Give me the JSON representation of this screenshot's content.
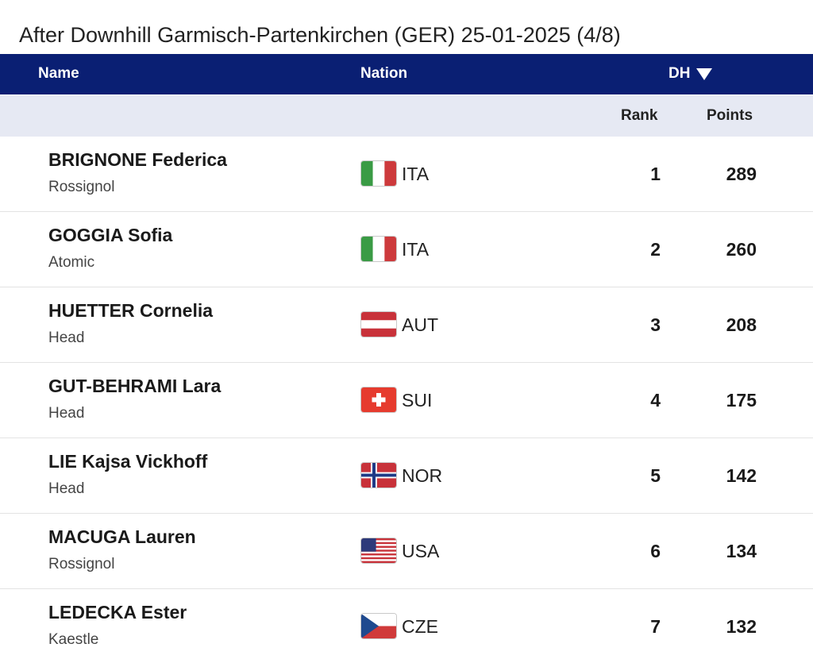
{
  "title": "After Downhill Garmisch-Partenkirchen (GER) 25-01-2025 (4/8)",
  "table": {
    "headers": {
      "name": "Name",
      "nation": "Nation",
      "discipline": "DH",
      "rank": "Rank",
      "points": "Points"
    },
    "sort_icon": "triangle-down-icon",
    "header_color": "#0a1f73",
    "subheader_color": "#e6e9f3",
    "rows": [
      {
        "name": "BRIGNONE Federica",
        "brand": "Rossignol",
        "nation": "ITA",
        "flag": "italy-flag-icon",
        "rank": "1",
        "points": "289"
      },
      {
        "name": "GOGGIA Sofia",
        "brand": "Atomic",
        "nation": "ITA",
        "flag": "italy-flag-icon",
        "rank": "2",
        "points": "260"
      },
      {
        "name": "HUETTER Cornelia",
        "brand": "Head",
        "nation": "AUT",
        "flag": "austria-flag-icon",
        "rank": "3",
        "points": "208"
      },
      {
        "name": "GUT-BEHRAMI Lara",
        "brand": "Head",
        "nation": "SUI",
        "flag": "switzerland-flag-icon",
        "rank": "4",
        "points": "175"
      },
      {
        "name": "LIE Kajsa Vickhoff",
        "brand": "Head",
        "nation": "NOR",
        "flag": "norway-flag-icon",
        "rank": "5",
        "points": "142"
      },
      {
        "name": "MACUGA Lauren",
        "brand": "Rossignol",
        "nation": "USA",
        "flag": "usa-flag-icon",
        "rank": "6",
        "points": "134"
      },
      {
        "name": "LEDECKA Ester",
        "brand": "Kaestle",
        "nation": "CZE",
        "flag": "czech-flag-icon",
        "rank": "7",
        "points": "132"
      }
    ]
  }
}
